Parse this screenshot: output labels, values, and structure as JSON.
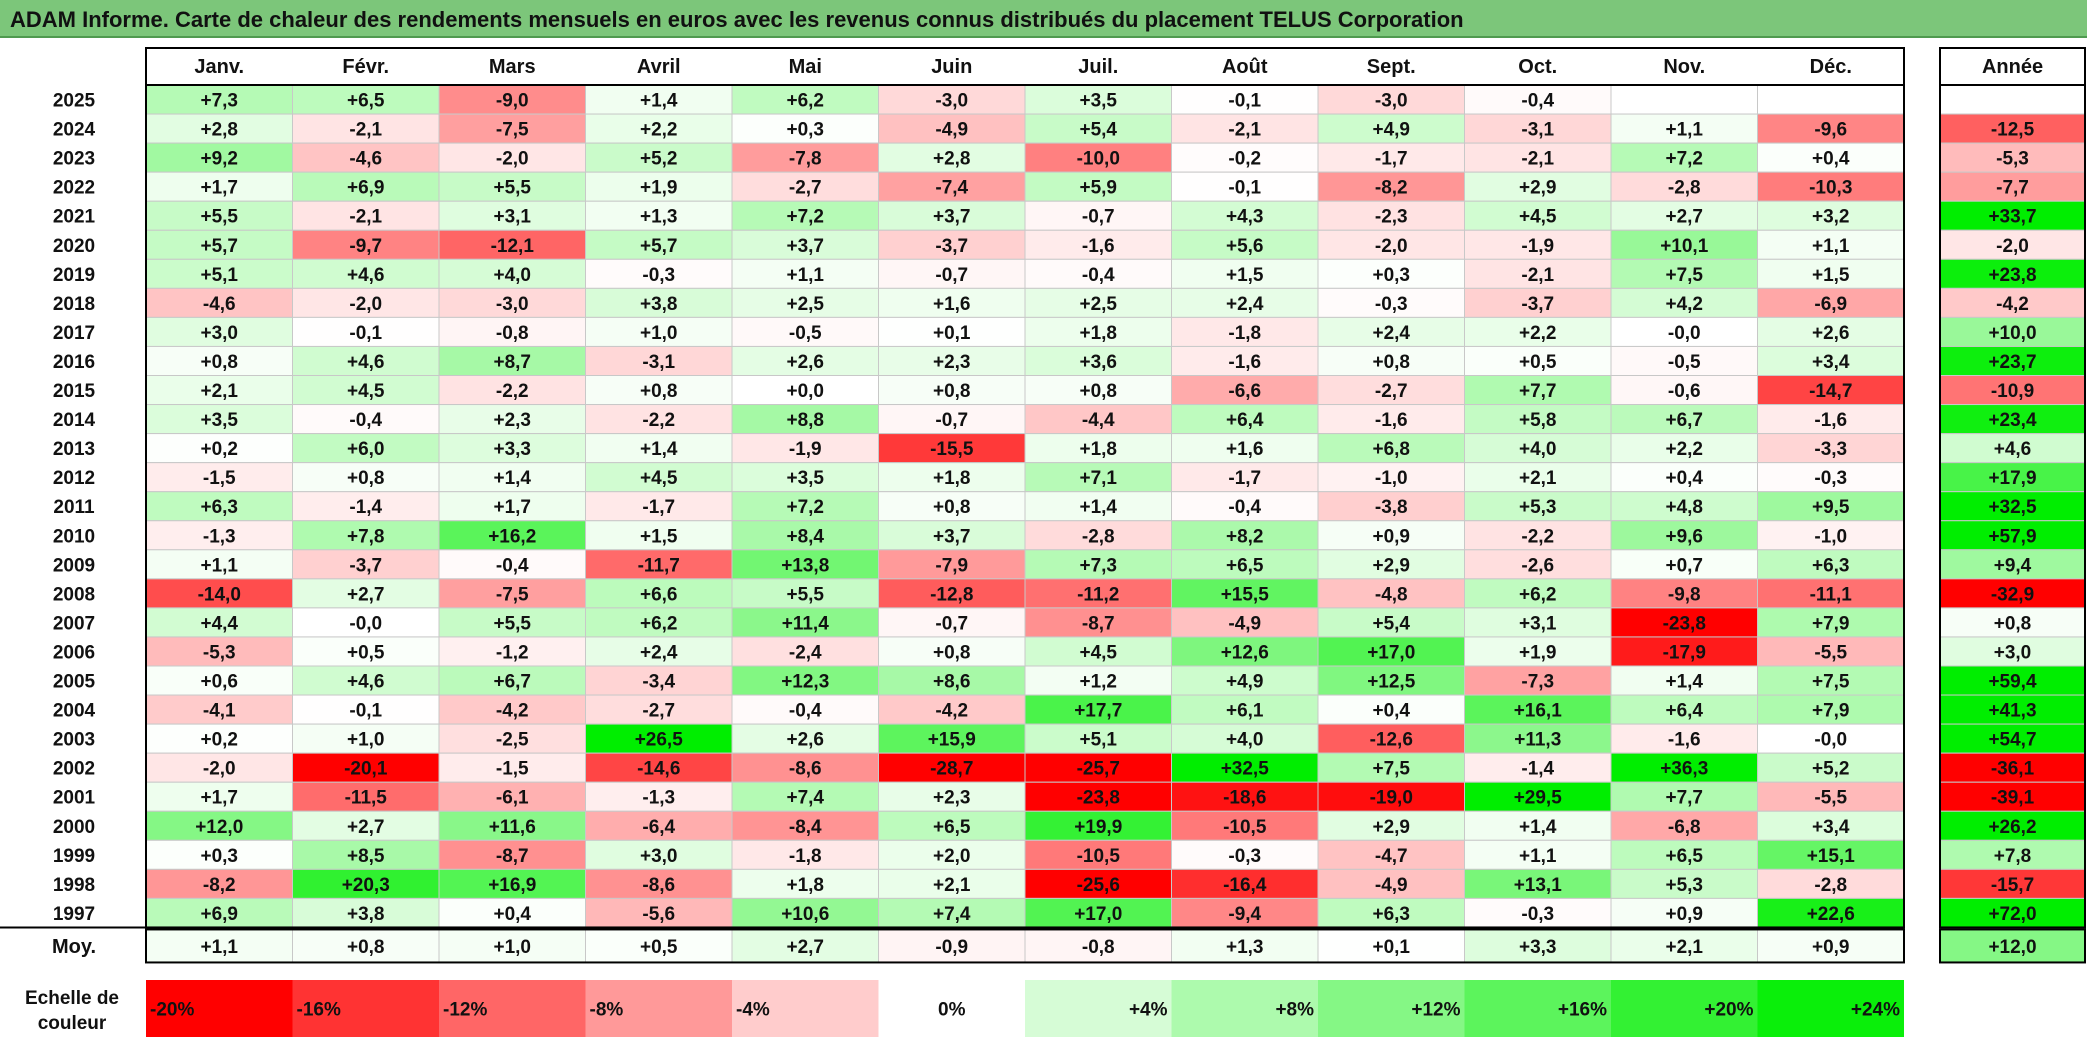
{
  "title": "ADAM Informe. Carte de chaleur des rendements mensuels en euros avec les revenus connus distribués du placement TELUS Corporation",
  "chart_data": {
    "type": "heatmap",
    "months": [
      "Janv.",
      "Févr.",
      "Mars",
      "Avril",
      "Mai",
      "Juin",
      "Juil.",
      "Août",
      "Sept.",
      "Oct.",
      "Nov.",
      "Déc."
    ],
    "year_header": "Année",
    "rows": [
      {
        "year": "2025",
        "values": [
          "+7,3",
          "+6,5",
          "-9,0",
          "+1,4",
          "+6,2",
          "-3,0",
          "+3,5",
          "-0,1",
          "-3,0",
          "-0,4",
          "",
          ""
        ],
        "annual": ""
      },
      {
        "year": "2024",
        "values": [
          "+2,8",
          "-2,1",
          "-7,5",
          "+2,2",
          "+0,3",
          "-4,9",
          "+5,4",
          "-2,1",
          "+4,9",
          "-3,1",
          "+1,1",
          "-9,6"
        ],
        "annual": "-12,5"
      },
      {
        "year": "2023",
        "values": [
          "+9,2",
          "-4,6",
          "-2,0",
          "+5,2",
          "-7,8",
          "+2,8",
          "-10,0",
          "-0,2",
          "-1,7",
          "-2,1",
          "+7,2",
          "+0,4"
        ],
        "annual": "-5,3"
      },
      {
        "year": "2022",
        "values": [
          "+1,7",
          "+6,9",
          "+5,5",
          "+1,9",
          "-2,7",
          "-7,4",
          "+5,9",
          "-0,1",
          "-8,2",
          "+2,9",
          "-2,8",
          "-10,3"
        ],
        "annual": "-7,7"
      },
      {
        "year": "2021",
        "values": [
          "+5,5",
          "-2,1",
          "+3,1",
          "+1,3",
          "+7,2",
          "+3,7",
          "-0,7",
          "+4,3",
          "-2,3",
          "+4,5",
          "+2,7",
          "+3,2"
        ],
        "annual": "+33,7"
      },
      {
        "year": "2020",
        "values": [
          "+5,7",
          "-9,7",
          "-12,1",
          "+5,7",
          "+3,7",
          "-3,7",
          "-1,6",
          "+5,6",
          "-2,0",
          "-1,9",
          "+10,1",
          "+1,1"
        ],
        "annual": "-2,0"
      },
      {
        "year": "2019",
        "values": [
          "+5,1",
          "+4,6",
          "+4,0",
          "-0,3",
          "+1,1",
          "-0,7",
          "-0,4",
          "+1,5",
          "+0,3",
          "-2,1",
          "+7,5",
          "+1,5"
        ],
        "annual": "+23,8"
      },
      {
        "year": "2018",
        "values": [
          "-4,6",
          "-2,0",
          "-3,0",
          "+3,8",
          "+2,5",
          "+1,6",
          "+2,5",
          "+2,4",
          "-0,3",
          "-3,7",
          "+4,2",
          "-6,9"
        ],
        "annual": "-4,2"
      },
      {
        "year": "2017",
        "values": [
          "+3,0",
          "-0,1",
          "-0,8",
          "+1,0",
          "-0,5",
          "+0,1",
          "+1,8",
          "-1,8",
          "+2,4",
          "+2,2",
          "-0,0",
          "+2,6"
        ],
        "annual": "+10,0"
      },
      {
        "year": "2016",
        "values": [
          "+0,8",
          "+4,6",
          "+8,7",
          "-3,1",
          "+2,6",
          "+2,3",
          "+3,6",
          "-1,6",
          "+0,8",
          "+0,5",
          "-0,5",
          "+3,4"
        ],
        "annual": "+23,7"
      },
      {
        "year": "2015",
        "values": [
          "+2,1",
          "+4,5",
          "-2,2",
          "+0,8",
          "+0,0",
          "+0,8",
          "+0,8",
          "-6,6",
          "-2,7",
          "+7,7",
          "-0,6",
          "-14,7"
        ],
        "annual": "-10,9"
      },
      {
        "year": "2014",
        "values": [
          "+3,5",
          "-0,4",
          "+2,3",
          "-2,2",
          "+8,8",
          "-0,7",
          "-4,4",
          "+6,4",
          "-1,6",
          "+5,8",
          "+6,7",
          "-1,6"
        ],
        "annual": "+23,4"
      },
      {
        "year": "2013",
        "values": [
          "+0,2",
          "+6,0",
          "+3,3",
          "+1,4",
          "-1,9",
          "-15,5",
          "+1,8",
          "+1,6",
          "+6,8",
          "+4,0",
          "+2,2",
          "-3,3"
        ],
        "annual": "+4,6"
      },
      {
        "year": "2012",
        "values": [
          "-1,5",
          "+0,8",
          "+1,4",
          "+4,5",
          "+3,5",
          "+1,8",
          "+7,1",
          "-1,7",
          "-1,0",
          "+2,1",
          "+0,4",
          "-0,3"
        ],
        "annual": "+17,9"
      },
      {
        "year": "2011",
        "values": [
          "+6,3",
          "-1,4",
          "+1,7",
          "-1,7",
          "+7,2",
          "+0,8",
          "+1,4",
          "-0,4",
          "-3,8",
          "+5,3",
          "+4,8",
          "+9,5"
        ],
        "annual": "+32,5"
      },
      {
        "year": "2010",
        "values": [
          "-1,3",
          "+7,8",
          "+16,2",
          "+1,5",
          "+8,4",
          "+3,7",
          "-2,8",
          "+8,2",
          "+0,9",
          "-2,2",
          "+9,6",
          "-1,0"
        ],
        "annual": "+57,9"
      },
      {
        "year": "2009",
        "values": [
          "+1,1",
          "-3,7",
          "-0,4",
          "-11,7",
          "+13,8",
          "-7,9",
          "+7,3",
          "+6,5",
          "+2,9",
          "-2,6",
          "+0,7",
          "+6,3"
        ],
        "annual": "+9,4"
      },
      {
        "year": "2008",
        "values": [
          "-14,0",
          "+2,7",
          "-7,5",
          "+6,6",
          "+5,5",
          "-12,8",
          "-11,2",
          "+15,5",
          "-4,8",
          "+6,2",
          "-9,8",
          "-11,1"
        ],
        "annual": "-32,9"
      },
      {
        "year": "2007",
        "values": [
          "+4,4",
          "-0,0",
          "+5,5",
          "+6,2",
          "+11,4",
          "-0,7",
          "-8,7",
          "-4,9",
          "+5,4",
          "+3,1",
          "-23,8",
          "+7,9"
        ],
        "annual": "+0,8"
      },
      {
        "year": "2006",
        "values": [
          "-5,3",
          "+0,5",
          "-1,2",
          "+2,4",
          "-2,4",
          "+0,8",
          "+4,5",
          "+12,6",
          "+17,0",
          "+1,9",
          "-17,9",
          "-5,5"
        ],
        "annual": "+3,0"
      },
      {
        "year": "2005",
        "values": [
          "+0,6",
          "+4,6",
          "+6,7",
          "-3,4",
          "+12,3",
          "+8,6",
          "+1,2",
          "+4,9",
          "+12,5",
          "-7,3",
          "+1,4",
          "+7,5"
        ],
        "annual": "+59,4"
      },
      {
        "year": "2004",
        "values": [
          "-4,1",
          "-0,1",
          "-4,2",
          "-2,7",
          "-0,4",
          "-4,2",
          "+17,7",
          "+6,1",
          "+0,4",
          "+16,1",
          "+6,4",
          "+7,9"
        ],
        "annual": "+41,3"
      },
      {
        "year": "2003",
        "values": [
          "+0,2",
          "+1,0",
          "-2,5",
          "+26,5",
          "+2,6",
          "+15,9",
          "+5,1",
          "+4,0",
          "-12,6",
          "+11,3",
          "-1,6",
          "-0,0"
        ],
        "annual": "+54,7"
      },
      {
        "year": "2002",
        "values": [
          "-2,0",
          "-20,1",
          "-1,5",
          "-14,6",
          "-8,6",
          "-28,7",
          "-25,7",
          "+32,5",
          "+7,5",
          "-1,4",
          "+36,3",
          "+5,2"
        ],
        "annual": "-36,1"
      },
      {
        "year": "2001",
        "values": [
          "+1,7",
          "-11,5",
          "-6,1",
          "-1,3",
          "+7,4",
          "+2,3",
          "-23,8",
          "-18,6",
          "-19,0",
          "+29,5",
          "+7,7",
          "-5,5"
        ],
        "annual": "-39,1"
      },
      {
        "year": "2000",
        "values": [
          "+12,0",
          "+2,7",
          "+11,6",
          "-6,4",
          "-8,4",
          "+6,5",
          "+19,9",
          "-10,5",
          "+2,9",
          "+1,4",
          "-6,8",
          "+3,4"
        ],
        "annual": "+26,2"
      },
      {
        "year": "1999",
        "values": [
          "+0,3",
          "+8,5",
          "-8,7",
          "+3,0",
          "-1,8",
          "+2,0",
          "-10,5",
          "-0,3",
          "-4,7",
          "+1,1",
          "+6,5",
          "+15,1"
        ],
        "annual": "+7,8"
      },
      {
        "year": "1998",
        "values": [
          "-8,2",
          "+20,3",
          "+16,9",
          "-8,6",
          "+1,8",
          "+2,1",
          "-25,6",
          "-16,4",
          "-4,9",
          "+13,1",
          "+5,3",
          "-2,8"
        ],
        "annual": "-15,7"
      },
      {
        "year": "1997",
        "values": [
          "+6,9",
          "+3,8",
          "+0,4",
          "-5,6",
          "+10,6",
          "+7,4",
          "+17,0",
          "-9,4",
          "+6,3",
          "-0,3",
          "+0,9",
          "+22,6"
        ],
        "annual": "+72,0"
      }
    ],
    "average": {
      "label": "Moy.",
      "values": [
        "+1,1",
        "+0,8",
        "+1,0",
        "+0,5",
        "+2,7",
        "-0,9",
        "-0,8",
        "+1,3",
        "+0,1",
        "+3,3",
        "+2,1",
        "+0,9"
      ],
      "annual": "+12,0"
    },
    "scale": {
      "label_line1": "Echelle de",
      "label_line2": "couleur",
      "stops": [
        "-20%",
        "-16%",
        "-12%",
        "-8%",
        "-4%",
        "0%",
        "+4%",
        "+8%",
        "+12%",
        "+16%",
        "+20%",
        "+24%"
      ],
      "stop_values": [
        -20,
        -16,
        -12,
        -8,
        -4,
        0,
        4,
        8,
        12,
        16,
        20,
        24
      ]
    },
    "colors": {
      "negative_max": "#ff0000",
      "neutral": "#ffffff",
      "positive_max": "#00ee00",
      "title_bar": "#7cc67a"
    }
  }
}
